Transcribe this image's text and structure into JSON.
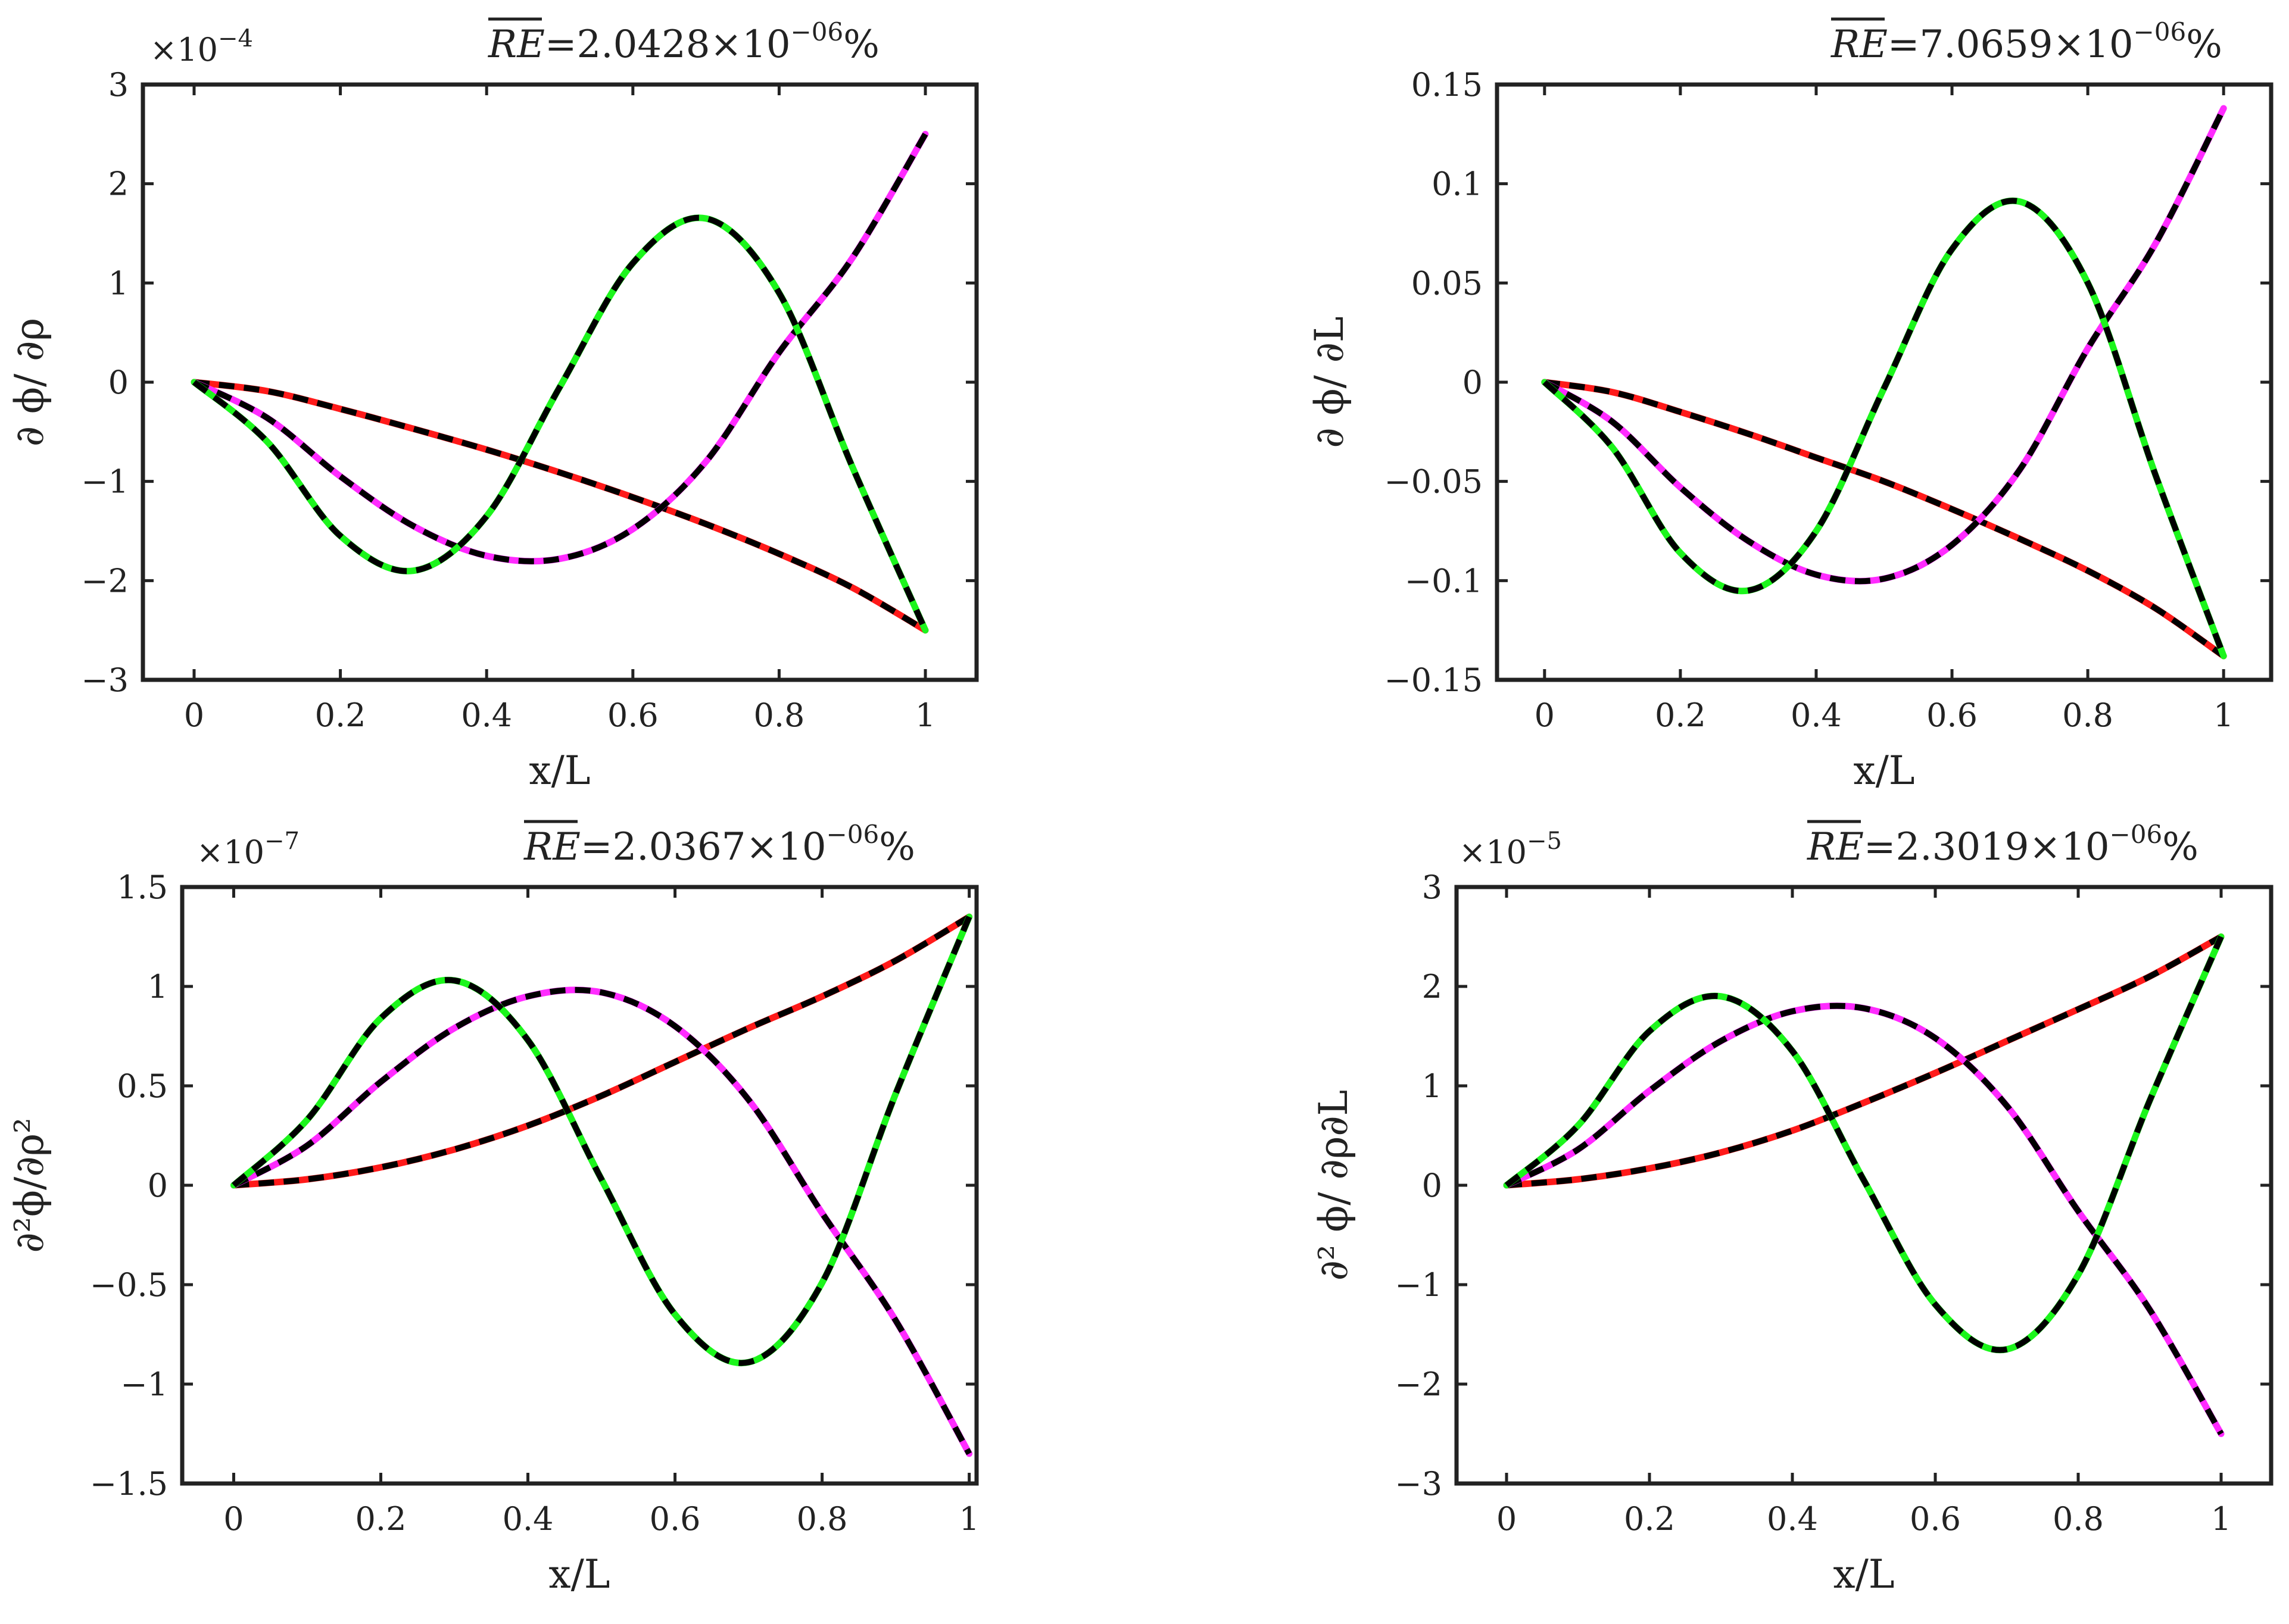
{
  "colors": {
    "red_series": "#ff1a1a",
    "magenta_series": "#ff2bff",
    "green_series": "#1cf51c",
    "dashed_overlay": "#000000",
    "axes": "#222222"
  },
  "chart_data": [
    {
      "type": "line",
      "title_symbol": "RE",
      "title_value": "=2.0428×10",
      "title_exponent": "−06",
      "title_unit": "%",
      "axis_exponent_base": "×10",
      "axis_exponent_power": "−4",
      "xlabel": "x/L",
      "ylabel": "∂ ϕ/ ∂ρ",
      "xlim": [
        -0.07,
        1.07
      ],
      "ylim": [
        -3,
        3
      ],
      "xticks": [
        0,
        0.2,
        0.4,
        0.6,
        0.8,
        1
      ],
      "xtick_labels": [
        "0",
        "0.2",
        "0.4",
        "0.6",
        "0.8",
        "1"
      ],
      "yticks": [
        -3,
        -2,
        -1,
        0,
        1,
        2,
        3
      ],
      "ytick_labels": [
        "−3",
        "−2",
        "−1",
        "0",
        "1",
        "2",
        "3"
      ],
      "grid": false,
      "series": [
        {
          "color_key": "red_series",
          "x": [
            0,
            0.1,
            0.2,
            0.3,
            0.4,
            0.5,
            0.6,
            0.7,
            0.8,
            0.9,
            1.0
          ],
          "y": [
            0,
            -0.09,
            -0.27,
            -0.47,
            -0.68,
            -0.91,
            -1.16,
            -1.43,
            -1.73,
            -2.07,
            -2.5
          ]
        },
        {
          "color_key": "magenta_series",
          "x": [
            0,
            0.1,
            0.2,
            0.3,
            0.4,
            0.5,
            0.6,
            0.7,
            0.8,
            0.9,
            1.0
          ],
          "y": [
            0,
            -0.36,
            -0.95,
            -1.45,
            -1.75,
            -1.78,
            -1.48,
            -0.8,
            0.3,
            1.25,
            2.5
          ]
        },
        {
          "color_key": "green_series",
          "x": [
            0,
            0.1,
            0.2,
            0.3,
            0.4,
            0.5,
            0.6,
            0.7,
            0.8,
            0.9,
            1.0
          ],
          "y": [
            0,
            -0.6,
            -1.55,
            -1.9,
            -1.35,
            -0.05,
            1.2,
            1.65,
            0.9,
            -0.85,
            -2.5
          ]
        }
      ]
    },
    {
      "type": "line",
      "title_symbol": "RE",
      "title_value": "=7.0659×10",
      "title_exponent": "−06",
      "title_unit": "%",
      "axis_exponent_base": "",
      "axis_exponent_power": "",
      "xlabel": "x/L",
      "ylabel": "∂ ϕ/ ∂L",
      "xlim": [
        -0.07,
        1.07
      ],
      "ylim": [
        -0.15,
        0.15
      ],
      "xticks": [
        0,
        0.2,
        0.4,
        0.6,
        0.8,
        1
      ],
      "xtick_labels": [
        "0",
        "0.2",
        "0.4",
        "0.6",
        "0.8",
        "1"
      ],
      "yticks": [
        -0.15,
        -0.1,
        -0.05,
        0,
        0.05,
        0.1,
        0.15
      ],
      "ytick_labels": [
        "−0.15",
        "−0.1",
        "−0.05",
        "0",
        "0.05",
        "0.1",
        "0.15"
      ],
      "grid": false,
      "series": [
        {
          "color_key": "red_series",
          "x": [
            0,
            0.1,
            0.2,
            0.3,
            0.4,
            0.5,
            0.6,
            0.7,
            0.8,
            0.9,
            1.0
          ],
          "y": [
            0,
            -0.005,
            -0.015,
            -0.026,
            -0.038,
            -0.05,
            -0.064,
            -0.079,
            -0.095,
            -0.114,
            -0.138
          ]
        },
        {
          "color_key": "magenta_series",
          "x": [
            0,
            0.1,
            0.2,
            0.3,
            0.4,
            0.5,
            0.6,
            0.7,
            0.8,
            0.9,
            1.0
          ],
          "y": [
            0,
            -0.02,
            -0.053,
            -0.08,
            -0.097,
            -0.099,
            -0.082,
            -0.044,
            0.017,
            0.07,
            0.138
          ]
        },
        {
          "color_key": "green_series",
          "x": [
            0,
            0.1,
            0.2,
            0.3,
            0.4,
            0.5,
            0.6,
            0.7,
            0.8,
            0.9,
            1.0
          ],
          "y": [
            0,
            -0.033,
            -0.086,
            -0.105,
            -0.075,
            -0.003,
            0.067,
            0.091,
            0.05,
            -0.047,
            -0.138
          ]
        }
      ]
    },
    {
      "type": "line",
      "title_symbol": "RE",
      "title_value": "=2.0367×10",
      "title_exponent": "−06",
      "title_unit": "%",
      "axis_exponent_base": "×10",
      "axis_exponent_power": "−7",
      "xlabel": "x/L",
      "ylabel": "∂²ϕ/∂ρ²",
      "xlim": [
        -0.07,
        1.01
      ],
      "ylim": [
        -1.5,
        1.5
      ],
      "xticks": [
        0,
        0.2,
        0.4,
        0.6,
        0.8,
        1
      ],
      "xtick_labels": [
        "0",
        "0.2",
        "0.4",
        "0.6",
        "0.8",
        "1"
      ],
      "yticks": [
        -1.5,
        -1,
        -0.5,
        0,
        0.5,
        1,
        1.5
      ],
      "ytick_labels": [
        "−1.5",
        "−1",
        "−0.5",
        "0",
        "0.5",
        "1",
        "1.5"
      ],
      "grid": false,
      "series": [
        {
          "color_key": "red_series",
          "x": [
            0,
            0.1,
            0.2,
            0.3,
            0.4,
            0.5,
            0.6,
            0.7,
            0.8,
            0.9,
            1.0
          ],
          "y": [
            0,
            0.03,
            0.09,
            0.18,
            0.3,
            0.45,
            0.62,
            0.79,
            0.95,
            1.13,
            1.35
          ]
        },
        {
          "color_key": "magenta_series",
          "x": [
            0,
            0.1,
            0.2,
            0.3,
            0.4,
            0.5,
            0.6,
            0.7,
            0.8,
            0.9,
            1.0
          ],
          "y": [
            0,
            0.2,
            0.52,
            0.79,
            0.95,
            0.97,
            0.8,
            0.43,
            -0.14,
            -0.68,
            -1.35
          ]
        },
        {
          "color_key": "green_series",
          "x": [
            0,
            0.1,
            0.2,
            0.3,
            0.4,
            0.5,
            0.6,
            0.7,
            0.8,
            0.9,
            1.0
          ],
          "y": [
            0,
            0.33,
            0.84,
            1.03,
            0.73,
            0.03,
            -0.65,
            -0.89,
            -0.49,
            0.46,
            1.35
          ]
        }
      ]
    },
    {
      "type": "line",
      "title_symbol": "RE",
      "title_value": "=2.3019×10",
      "title_exponent": "−06",
      "title_unit": "%",
      "axis_exponent_base": "×10",
      "axis_exponent_power": "−5",
      "xlabel": "x/L",
      "ylabel": "∂² ϕ/ ∂ρ∂L",
      "xlim": [
        -0.07,
        1.07
      ],
      "ylim": [
        -3,
        3
      ],
      "xticks": [
        0,
        0.2,
        0.4,
        0.6,
        0.8,
        1
      ],
      "xtick_labels": [
        "0",
        "0.2",
        "0.4",
        "0.6",
        "0.8",
        "1"
      ],
      "yticks": [
        -3,
        -2,
        -1,
        0,
        1,
        2,
        3
      ],
      "ytick_labels": [
        "−3",
        "−2",
        "−1",
        "0",
        "1",
        "2",
        "3"
      ],
      "grid": false,
      "series": [
        {
          "color_key": "red_series",
          "x": [
            0,
            0.1,
            0.2,
            0.3,
            0.4,
            0.5,
            0.6,
            0.7,
            0.8,
            0.9,
            1.0
          ],
          "y": [
            0,
            0.06,
            0.17,
            0.33,
            0.55,
            0.83,
            1.13,
            1.45,
            1.77,
            2.1,
            2.5
          ]
        },
        {
          "color_key": "magenta_series",
          "x": [
            0,
            0.1,
            0.2,
            0.3,
            0.4,
            0.5,
            0.6,
            0.7,
            0.8,
            0.9,
            1.0
          ],
          "y": [
            0,
            0.36,
            0.95,
            1.45,
            1.75,
            1.78,
            1.48,
            0.8,
            -0.26,
            -1.25,
            -2.5
          ]
        },
        {
          "color_key": "green_series",
          "x": [
            0,
            0.1,
            0.2,
            0.3,
            0.4,
            0.5,
            0.6,
            0.7,
            0.8,
            0.9,
            1.0
          ],
          "y": [
            0,
            0.6,
            1.55,
            1.9,
            1.35,
            0.05,
            -1.2,
            -1.65,
            -0.9,
            0.85,
            2.5
          ]
        }
      ]
    }
  ]
}
